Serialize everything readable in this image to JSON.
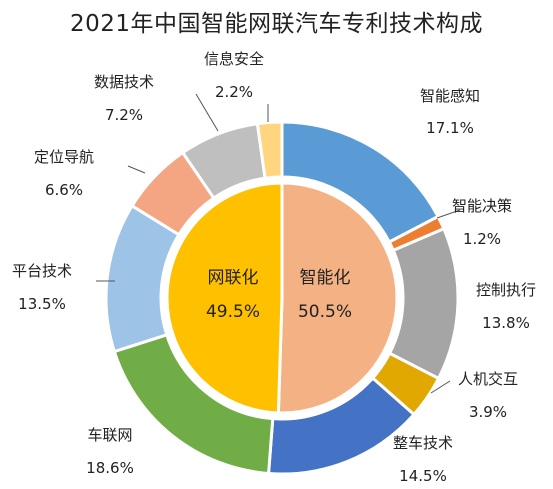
{
  "chart_data": {
    "type": "pie",
    "variant": "nested-donut",
    "title": "2021年中国智能网联汽车专利技术构成",
    "inner": [
      {
        "name": "智能化",
        "value": 50.5,
        "label": "50.5%",
        "color": "#F4B183"
      },
      {
        "name": "网联化",
        "value": 49.5,
        "label": "49.5%",
        "color": "#FFC000"
      }
    ],
    "outer": [
      {
        "name": "智能感知",
        "value": 17.1,
        "label": "17.1%",
        "color": "#5B9BD5"
      },
      {
        "name": "智能决策",
        "value": 1.2,
        "label": "1.2%",
        "color": "#ED7D31"
      },
      {
        "name": "控制执行",
        "value": 13.8,
        "label": "13.8%",
        "color": "#A5A5A5"
      },
      {
        "name": "人机交互",
        "value": 3.9,
        "label": "3.9%",
        "color": "#E0A800"
      },
      {
        "name": "整车技术",
        "value": 14.5,
        "label": "14.5%",
        "color": "#4472C4"
      },
      {
        "name": "车联网",
        "value": 18.6,
        "label": "18.6%",
        "color": "#70AD47"
      },
      {
        "name": "平台技术",
        "value": 13.5,
        "label": "13.5%",
        "color": "#9DC3E6"
      },
      {
        "name": "定位导航",
        "value": 6.6,
        "label": "6.6%",
        "color": "#F4A582"
      },
      {
        "name": "数据技术",
        "value": 7.2,
        "label": "7.2%",
        "color": "#BFBFBF"
      },
      {
        "name": "信息安全",
        "value": 2.2,
        "label": "2.2%",
        "color": "#FFD580"
      }
    ]
  }
}
